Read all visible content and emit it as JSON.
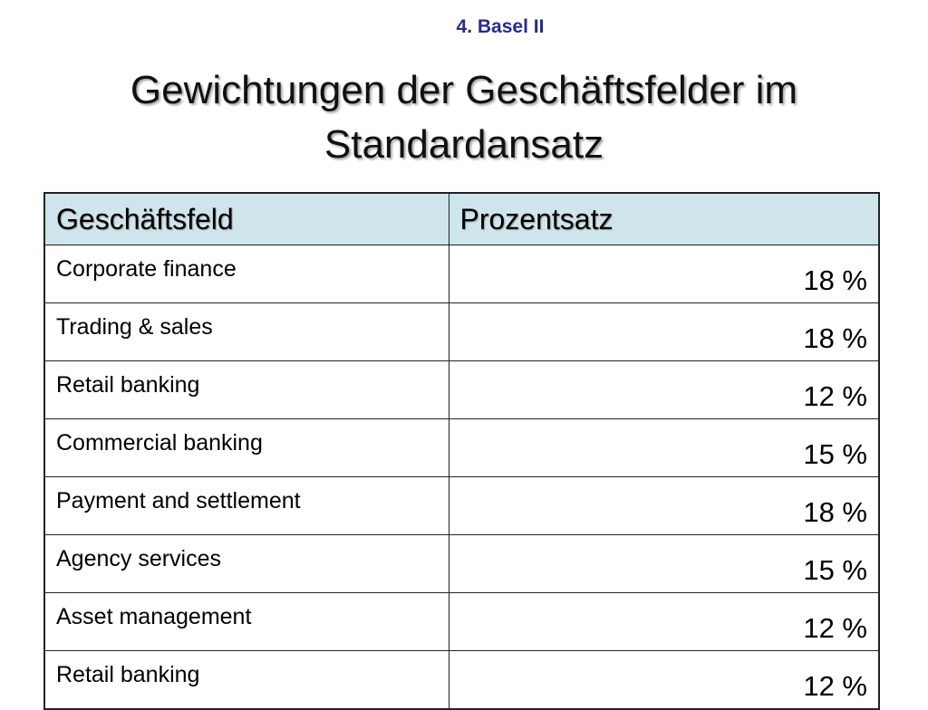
{
  "header": {
    "section": "4. Basel II",
    "title": "Gewichtungen der Geschäftsfelder im Standardansatz"
  },
  "table": {
    "columns": [
      "Geschäftsfeld",
      "Prozentsatz"
    ],
    "rows": [
      [
        "Corporate finance",
        "18 %"
      ],
      [
        "Trading & sales",
        "18 %"
      ],
      [
        "Retail banking",
        "12 %"
      ],
      [
        "Commercial banking",
        "15 %"
      ],
      [
        "Payment and settlement",
        "18 %"
      ],
      [
        "Agency services",
        "15 %"
      ],
      [
        "Asset management",
        "12 %"
      ],
      [
        "Retail banking",
        "12 %"
      ]
    ]
  }
}
